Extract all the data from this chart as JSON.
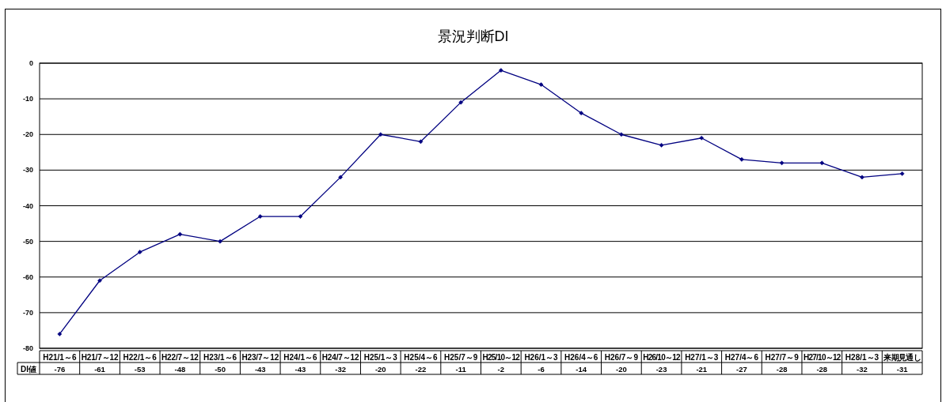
{
  "chart_data": {
    "type": "line",
    "title": "景況判断DI",
    "categories": [
      "H21/1～6",
      "H21/7～12",
      "H22/1～6",
      "H22/7～12",
      "H23/1～6",
      "H23/7～12",
      "H24/1～6",
      "H24/7～12",
      "H25/1～3",
      "H25/4～6",
      "H25/7～9",
      "H25/10～12",
      "H26/1～3",
      "H26/4～6",
      "H26/7～9",
      "H26/10～12",
      "H27/1～3",
      "H27/4～6",
      "H27/7～9",
      "H27/10～12",
      "H28/1～3",
      "来期見通し"
    ],
    "series": [
      {
        "name": "DI値",
        "color": "#000080",
        "values": [
          -76,
          -61,
          -53,
          -48,
          -50,
          -43,
          -43,
          -32,
          -20,
          -22,
          -11,
          -2,
          -6,
          -14,
          -20,
          -23,
          -21,
          -27,
          -28,
          -28,
          -32,
          -31
        ]
      }
    ],
    "ylim": [
      -80,
      0
    ],
    "yticks": [
      0,
      -10,
      -20,
      -30,
      -40,
      -50,
      -60,
      -70,
      -80
    ],
    "grid": "y",
    "marker": "diamond",
    "line_style": "solid",
    "data_labels": true
  }
}
